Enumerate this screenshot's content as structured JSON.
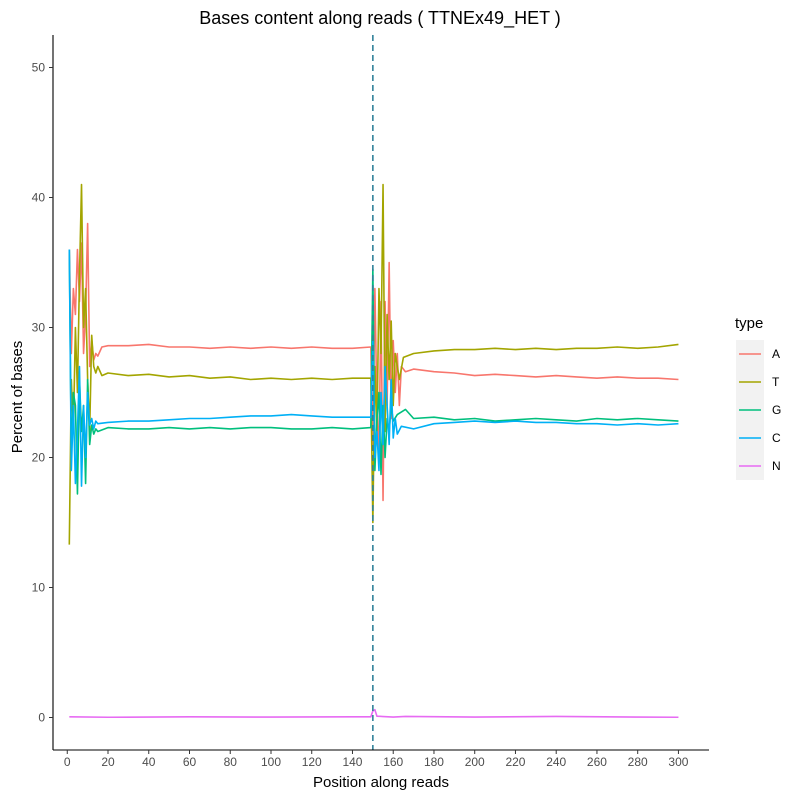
{
  "chart_data": {
    "type": "line",
    "title": "Bases content along reads ( TTNEx49_HET )",
    "xlabel": "Position along reads",
    "ylabel": "Percent of bases",
    "xlim": [
      -7,
      315
    ],
    "ylim": [
      -2.5,
      52.5
    ],
    "x_ticks": [
      0,
      20,
      40,
      60,
      80,
      100,
      120,
      140,
      160,
      180,
      200,
      220,
      240,
      260,
      280,
      300
    ],
    "y_ticks": [
      0,
      10,
      20,
      30,
      40,
      50
    ],
    "vline": {
      "x": 150,
      "style": "dashed",
      "color": "#31819a"
    },
    "grid": false,
    "legend": {
      "title": "type",
      "position": "right"
    },
    "series": [
      {
        "name": "A",
        "color": "#F8766D",
        "points": [
          [
            1,
            36
          ],
          [
            2,
            28
          ],
          [
            3,
            33
          ],
          [
            4,
            31
          ],
          [
            5,
            36
          ],
          [
            6,
            32
          ],
          [
            7,
            36.5
          ],
          [
            8,
            28
          ],
          [
            9,
            31
          ],
          [
            10,
            38
          ],
          [
            11,
            27
          ],
          [
            12,
            29
          ],
          [
            13,
            27.5
          ],
          [
            14,
            28
          ],
          [
            15,
            27.8
          ],
          [
            17,
            28.5
          ],
          [
            20,
            28.6
          ],
          [
            30,
            28.6
          ],
          [
            40,
            28.7
          ],
          [
            50,
            28.5
          ],
          [
            60,
            28.5
          ],
          [
            70,
            28.4
          ],
          [
            80,
            28.5
          ],
          [
            90,
            28.4
          ],
          [
            100,
            28.5
          ],
          [
            110,
            28.4
          ],
          [
            120,
            28.5
          ],
          [
            130,
            28.4
          ],
          [
            140,
            28.4
          ],
          [
            149,
            28.5
          ],
          [
            150,
            21
          ],
          [
            151,
            33
          ],
          [
            152,
            24
          ],
          [
            153,
            20
          ],
          [
            154,
            32
          ],
          [
            155,
            16.7
          ],
          [
            156,
            32
          ],
          [
            157,
            24
          ],
          [
            158,
            35
          ],
          [
            159,
            23
          ],
          [
            160,
            29
          ],
          [
            161,
            25
          ],
          [
            162,
            28
          ],
          [
            163,
            24
          ],
          [
            164,
            27
          ],
          [
            166,
            26.6
          ],
          [
            170,
            26.8
          ],
          [
            180,
            26.6
          ],
          [
            190,
            26.5
          ],
          [
            200,
            26.3
          ],
          [
            210,
            26.4
          ],
          [
            220,
            26.3
          ],
          [
            230,
            26.2
          ],
          [
            240,
            26.3
          ],
          [
            250,
            26.2
          ],
          [
            260,
            26.1
          ],
          [
            270,
            26.2
          ],
          [
            280,
            26.1
          ],
          [
            290,
            26.1
          ],
          [
            300,
            26
          ]
        ]
      },
      {
        "name": "T",
        "color": "#A3A500",
        "points": [
          [
            1,
            13.3
          ],
          [
            2,
            26
          ],
          [
            3,
            22
          ],
          [
            4,
            30
          ],
          [
            5,
            25
          ],
          [
            6,
            34
          ],
          [
            7,
            41
          ],
          [
            8,
            30
          ],
          [
            9,
            33
          ],
          [
            10,
            26
          ],
          [
            11,
            22
          ],
          [
            12,
            29.4
          ],
          [
            13,
            27
          ],
          [
            14,
            26.5
          ],
          [
            15,
            27
          ],
          [
            17,
            26.3
          ],
          [
            20,
            26.5
          ],
          [
            30,
            26.3
          ],
          [
            40,
            26.4
          ],
          [
            50,
            26.2
          ],
          [
            60,
            26.3
          ],
          [
            70,
            26.1
          ],
          [
            80,
            26.2
          ],
          [
            90,
            26
          ],
          [
            100,
            26.1
          ],
          [
            110,
            26
          ],
          [
            120,
            26.1
          ],
          [
            130,
            26
          ],
          [
            140,
            26.1
          ],
          [
            149,
            26.1
          ],
          [
            150,
            15
          ],
          [
            151,
            27
          ],
          [
            152,
            22
          ],
          [
            153,
            33
          ],
          [
            154,
            28
          ],
          [
            155,
            41
          ],
          [
            156,
            22
          ],
          [
            157,
            31
          ],
          [
            158,
            26
          ],
          [
            159,
            30.5
          ],
          [
            160,
            24
          ],
          [
            161,
            28
          ],
          [
            162,
            27
          ],
          [
            163,
            26
          ],
          [
            165,
            27.7
          ],
          [
            170,
            28
          ],
          [
            180,
            28.2
          ],
          [
            190,
            28.3
          ],
          [
            200,
            28.3
          ],
          [
            210,
            28.4
          ],
          [
            220,
            28.3
          ],
          [
            230,
            28.4
          ],
          [
            240,
            28.3
          ],
          [
            250,
            28.4
          ],
          [
            260,
            28.4
          ],
          [
            270,
            28.5
          ],
          [
            280,
            28.4
          ],
          [
            290,
            28.5
          ],
          [
            300,
            28.7
          ]
        ]
      },
      {
        "name": "G",
        "color": "#00BF7D",
        "points": [
          [
            1,
            36
          ],
          [
            2,
            20
          ],
          [
            3,
            25
          ],
          [
            4,
            24
          ],
          [
            5,
            17.2
          ],
          [
            6,
            26
          ],
          [
            7,
            22
          ],
          [
            8,
            24
          ],
          [
            9,
            18
          ],
          [
            10,
            26
          ],
          [
            11,
            21
          ],
          [
            12,
            22.5
          ],
          [
            13,
            21.8
          ],
          [
            14,
            22.2
          ],
          [
            15,
            22
          ],
          [
            20,
            22.3
          ],
          [
            30,
            22.2
          ],
          [
            40,
            22.2
          ],
          [
            50,
            22.3
          ],
          [
            60,
            22.2
          ],
          [
            70,
            22.3
          ],
          [
            80,
            22.2
          ],
          [
            90,
            22.3
          ],
          [
            100,
            22.3
          ],
          [
            110,
            22.2
          ],
          [
            120,
            22.2
          ],
          [
            130,
            22.3
          ],
          [
            140,
            22.2
          ],
          [
            149,
            22.3
          ],
          [
            150,
            34.5
          ],
          [
            151,
            19
          ],
          [
            152,
            23
          ],
          [
            153,
            25
          ],
          [
            154,
            18.7
          ],
          [
            155,
            24
          ],
          [
            156,
            20
          ],
          [
            157,
            23
          ],
          [
            158,
            22
          ],
          [
            159,
            24
          ],
          [
            160,
            22.8
          ],
          [
            162,
            23.3
          ],
          [
            166,
            23.7
          ],
          [
            170,
            23
          ],
          [
            180,
            23.1
          ],
          [
            190,
            22.9
          ],
          [
            200,
            23
          ],
          [
            210,
            22.8
          ],
          [
            220,
            22.9
          ],
          [
            230,
            23
          ],
          [
            240,
            22.9
          ],
          [
            250,
            22.8
          ],
          [
            260,
            23
          ],
          [
            270,
            22.9
          ],
          [
            280,
            23
          ],
          [
            290,
            22.9
          ],
          [
            300,
            22.8
          ]
        ]
      },
      {
        "name": "C",
        "color": "#00B0F6",
        "points": [
          [
            1,
            36
          ],
          [
            2,
            19
          ],
          [
            3,
            24
          ],
          [
            4,
            18
          ],
          [
            5,
            22
          ],
          [
            6,
            27
          ],
          [
            7,
            17.8
          ],
          [
            8,
            24
          ],
          [
            9,
            20
          ],
          [
            10,
            25
          ],
          [
            11,
            22.5
          ],
          [
            12,
            23
          ],
          [
            13,
            22.2
          ],
          [
            14,
            22.8
          ],
          [
            15,
            22.6
          ],
          [
            20,
            22.7
          ],
          [
            30,
            22.8
          ],
          [
            40,
            22.8
          ],
          [
            50,
            22.9
          ],
          [
            60,
            23
          ],
          [
            70,
            23
          ],
          [
            80,
            23.1
          ],
          [
            90,
            23.2
          ],
          [
            100,
            23.2
          ],
          [
            110,
            23.3
          ],
          [
            120,
            23.2
          ],
          [
            130,
            23.1
          ],
          [
            140,
            23.1
          ],
          [
            149,
            23.1
          ],
          [
            150,
            29
          ],
          [
            151,
            20
          ],
          [
            152,
            22
          ],
          [
            153,
            19
          ],
          [
            154,
            25
          ],
          [
            155,
            21
          ],
          [
            156,
            27
          ],
          [
            157,
            24
          ],
          [
            158,
            21
          ],
          [
            159,
            26
          ],
          [
            160,
            21.5
          ],
          [
            161,
            23
          ],
          [
            162,
            21.8
          ],
          [
            164,
            22.4
          ],
          [
            170,
            22.2
          ],
          [
            180,
            22.6
          ],
          [
            190,
            22.7
          ],
          [
            200,
            22.8
          ],
          [
            210,
            22.7
          ],
          [
            220,
            22.8
          ],
          [
            230,
            22.7
          ],
          [
            240,
            22.7
          ],
          [
            250,
            22.6
          ],
          [
            260,
            22.6
          ],
          [
            270,
            22.5
          ],
          [
            280,
            22.6
          ],
          [
            290,
            22.5
          ],
          [
            300,
            22.6
          ]
        ]
      },
      {
        "name": "N",
        "color": "#E76BF3",
        "points": [
          [
            1,
            0.05
          ],
          [
            20,
            0.02
          ],
          [
            60,
            0.05
          ],
          [
            100,
            0.03
          ],
          [
            140,
            0.05
          ],
          [
            149,
            0.05
          ],
          [
            150,
            0.5
          ],
          [
            151,
            0.6
          ],
          [
            152,
            0.1
          ],
          [
            160,
            0.03
          ],
          [
            166,
            0.08
          ],
          [
            200,
            0.03
          ],
          [
            240,
            0.08
          ],
          [
            280,
            0.03
          ],
          [
            300,
            0.02
          ]
        ]
      }
    ]
  }
}
